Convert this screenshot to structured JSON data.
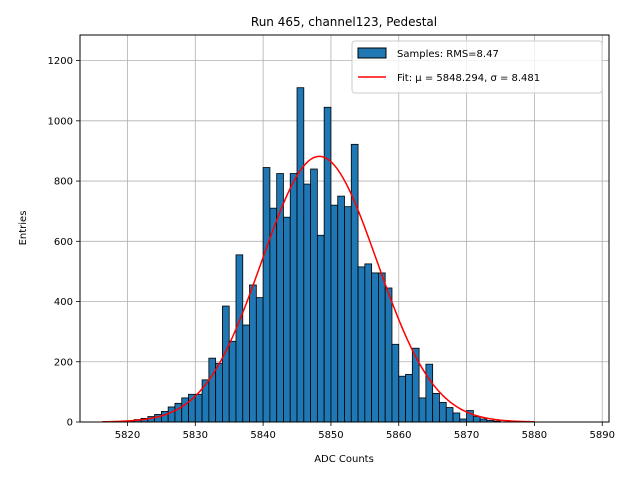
{
  "chart_data": {
    "type": "bar",
    "title": "Run 465, channel123, Pedestal",
    "xlabel": "ADC Counts",
    "ylabel": "Entries",
    "xlim": [
      5813,
      5891
    ],
    "ylim": [
      0,
      1285
    ],
    "xticks": [
      5820,
      5830,
      5840,
      5850,
      5860,
      5870,
      5880,
      5890
    ],
    "yticks": [
      0,
      200,
      400,
      600,
      800,
      1000,
      1200
    ],
    "grid": true,
    "legend_position": "top-right",
    "bin_start": 5820,
    "bin_width": 1,
    "series": [
      {
        "name": "Samples: RMS=8.47",
        "type": "histogram",
        "color": "#1f77b4",
        "edgecolor": "#000000",
        "values": [
          3,
          8,
          12,
          18,
          25,
          35,
          50,
          62,
          80,
          92,
          92,
          140,
          212,
          195,
          385,
          268,
          555,
          322,
          455,
          413,
          845,
          710,
          825,
          680,
          825,
          1110,
          790,
          840,
          620,
          1045,
          720,
          750,
          715,
          922,
          515,
          525,
          495,
          495,
          445,
          258,
          152,
          158,
          245,
          80,
          192,
          95,
          65,
          48,
          30,
          10,
          38,
          18,
          10,
          5,
          3
        ]
      },
      {
        "name": "Fit: μ = 5848.294, σ = 8.481",
        "type": "line",
        "color": "#ff0000",
        "mu": 5848.294,
        "sigma": 8.481,
        "amplitude": 882,
        "x_range": [
          5816.3,
          5880
        ]
      }
    ]
  }
}
